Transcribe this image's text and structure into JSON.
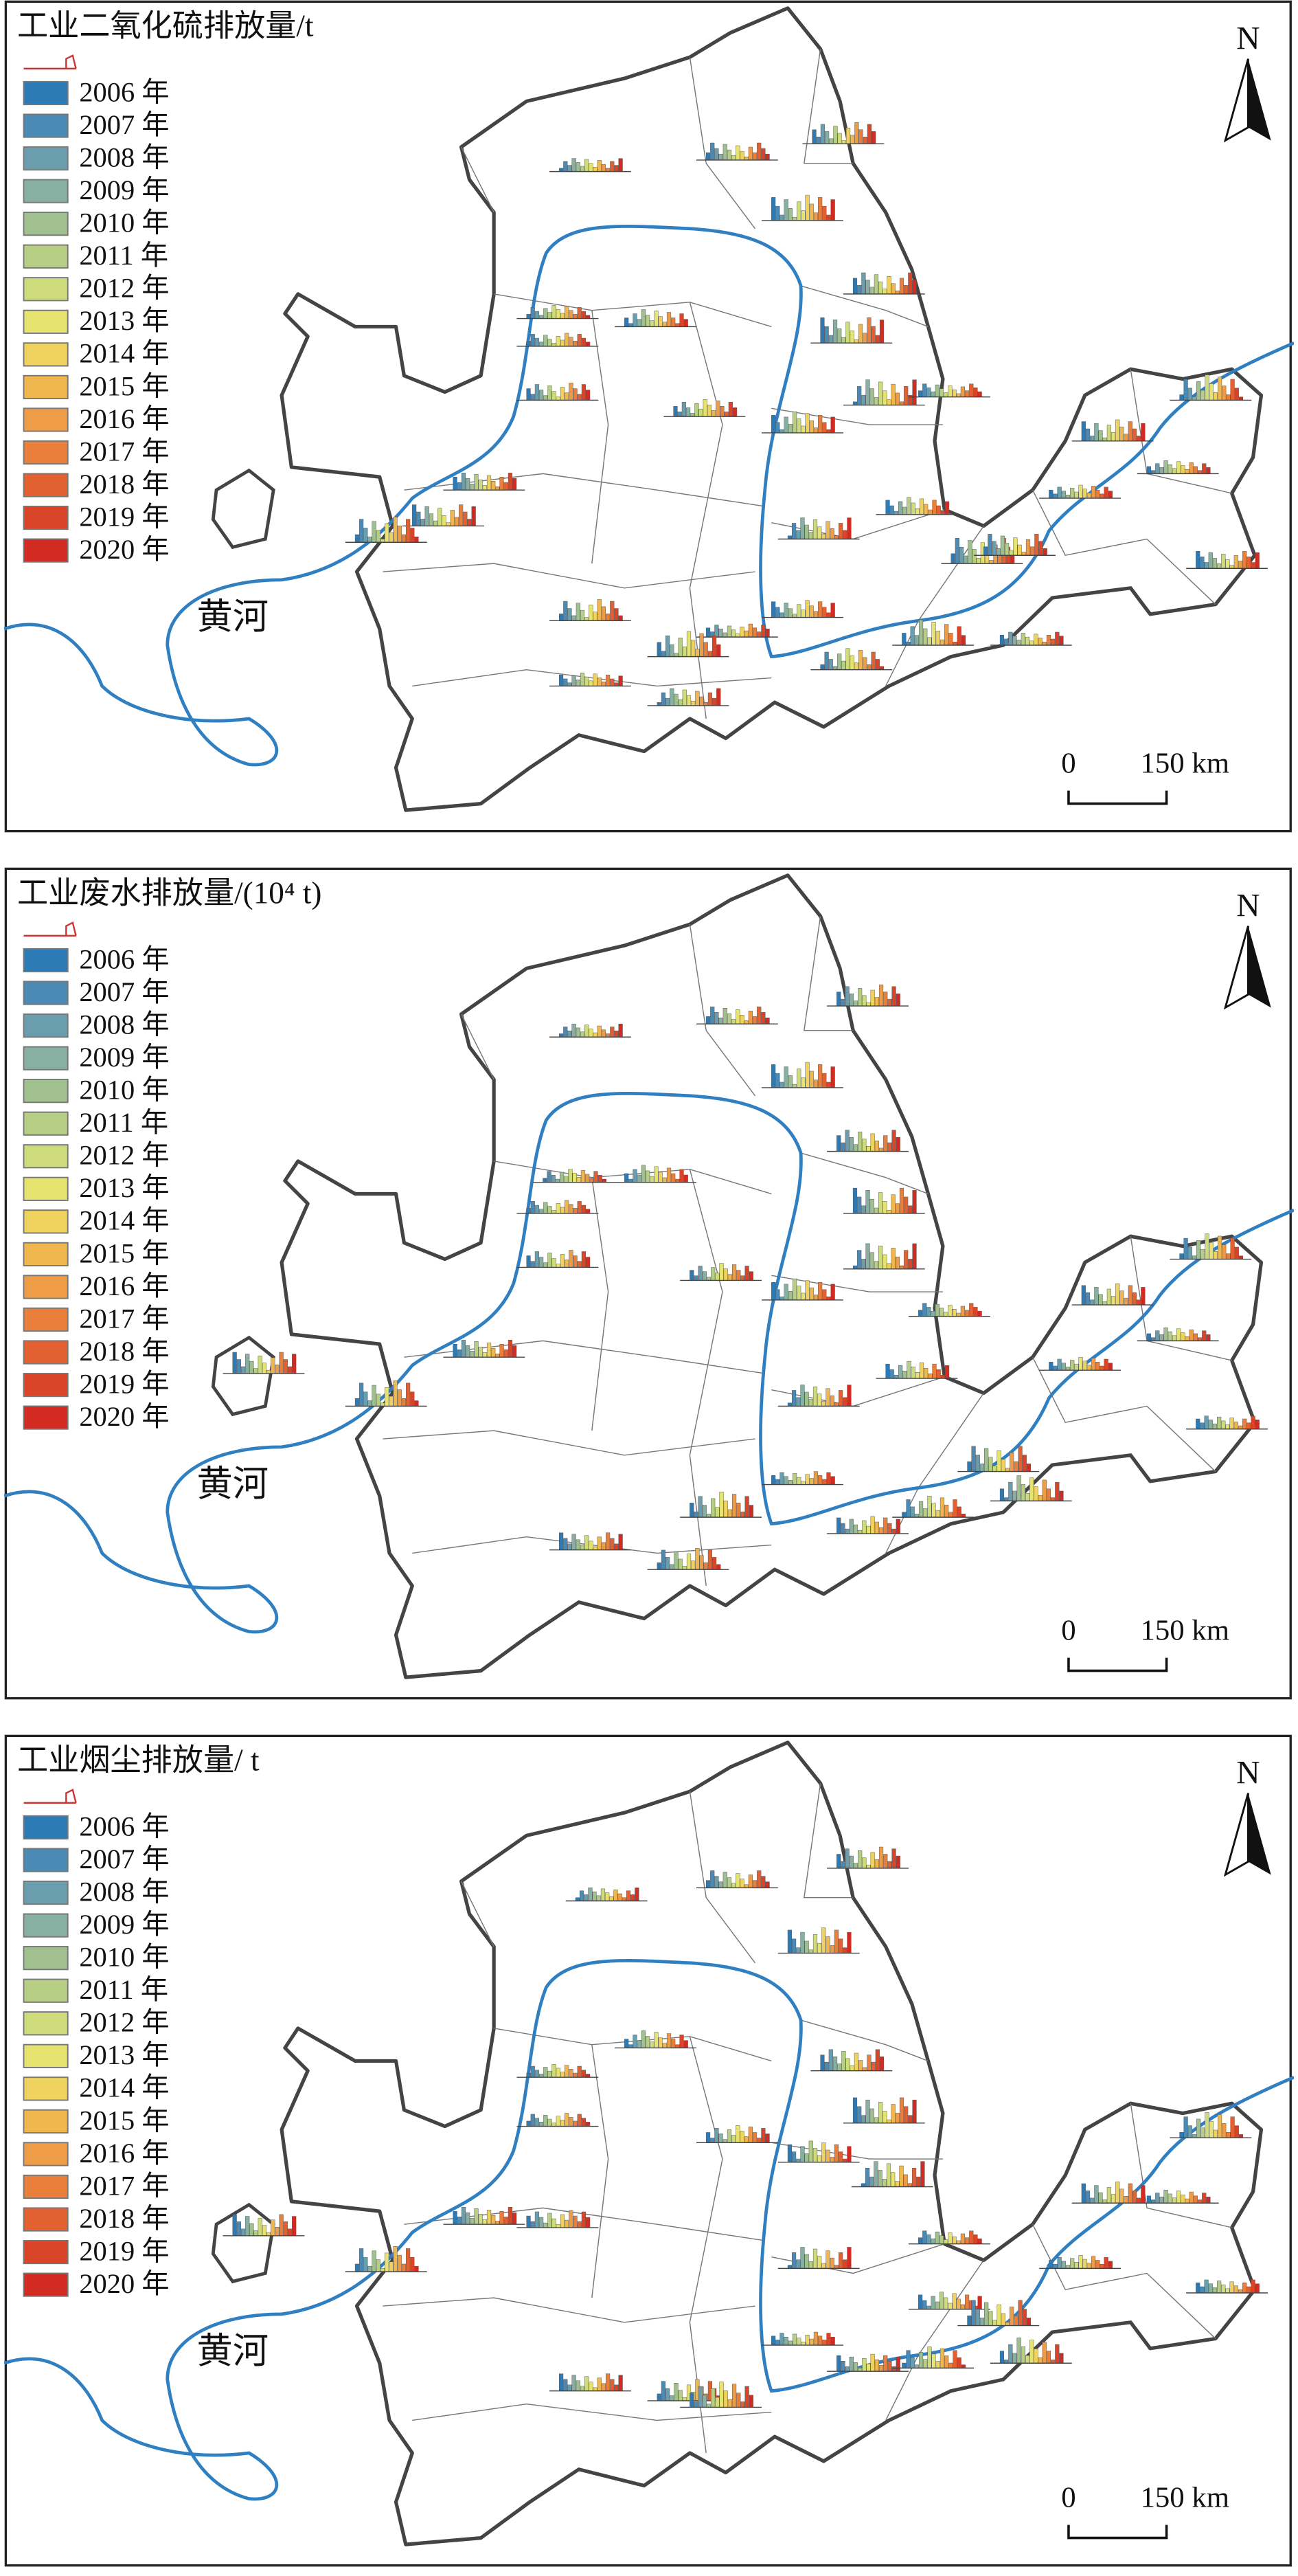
{
  "panels": [
    {
      "title": "工业二氧化硫排放量/t",
      "legend": [
        {
          "label": "2006 年",
          "color": "#2c7bb6"
        },
        {
          "label": "2007 年",
          "color": "#4a8ab4"
        },
        {
          "label": "2008 年",
          "color": "#6a9eae"
        },
        {
          "label": "2009 年",
          "color": "#88b0a2"
        },
        {
          "label": "2010 年",
          "color": "#a0c08f"
        },
        {
          "label": "2011 年",
          "color": "#b7cf85"
        },
        {
          "label": "2012 年",
          "color": "#cfdc7c"
        },
        {
          "label": "2013 年",
          "color": "#e6e46f"
        },
        {
          "label": "2014 年",
          "color": "#efd35e"
        },
        {
          "label": "2015 年",
          "color": "#f0b74f"
        },
        {
          "label": "2016 年",
          "color": "#ef9c46"
        },
        {
          "label": "2017 年",
          "color": "#ea7f3c"
        },
        {
          "label": "2018 年",
          "color": "#e36131"
        },
        {
          "label": "2019 年",
          "color": "#da4428"
        },
        {
          "label": "2020 年",
          "color": "#d22b22"
        }
      ],
      "river_label": "黄河",
      "north": "N",
      "scale_start": "0",
      "scale_end": "150 km"
    },
    {
      "title": "工业废水排放量/(10⁴ t)",
      "legend": [
        {
          "label": "2006 年",
          "color": "#2c7bb6"
        },
        {
          "label": "2007 年",
          "color": "#4a8ab4"
        },
        {
          "label": "2008 年",
          "color": "#6a9eae"
        },
        {
          "label": "2009 年",
          "color": "#88b0a2"
        },
        {
          "label": "2010 年",
          "color": "#a0c08f"
        },
        {
          "label": "2011 年",
          "color": "#b7cf85"
        },
        {
          "label": "2012 年",
          "color": "#cfdc7c"
        },
        {
          "label": "2013 年",
          "color": "#e6e46f"
        },
        {
          "label": "2014 年",
          "color": "#efd35e"
        },
        {
          "label": "2015 年",
          "color": "#f0b74f"
        },
        {
          "label": "2016 年",
          "color": "#ef9c46"
        },
        {
          "label": "2017 年",
          "color": "#ea7f3c"
        },
        {
          "label": "2018 年",
          "color": "#e36131"
        },
        {
          "label": "2019 年",
          "color": "#da4428"
        },
        {
          "label": "2020 年",
          "color": "#d22b22"
        }
      ],
      "river_label": "黄河",
      "north": "N",
      "scale_start": "0",
      "scale_end": "150 km"
    },
    {
      "title": "工业烟尘排放量/ t",
      "legend": [
        {
          "label": "2006 年",
          "color": "#2c7bb6"
        },
        {
          "label": "2007 年",
          "color": "#4a8ab4"
        },
        {
          "label": "2008 年",
          "color": "#6a9eae"
        },
        {
          "label": "2009 年",
          "color": "#88b0a2"
        },
        {
          "label": "2010 年",
          "color": "#a0c08f"
        },
        {
          "label": "2011 年",
          "color": "#b7cf85"
        },
        {
          "label": "2012 年",
          "color": "#cfdc7c"
        },
        {
          "label": "2013 年",
          "color": "#e6e46f"
        },
        {
          "label": "2014 年",
          "color": "#efd35e"
        },
        {
          "label": "2015 年",
          "color": "#f0b74f"
        },
        {
          "label": "2016 年",
          "color": "#ef9c46"
        },
        {
          "label": "2017 年",
          "color": "#ea7f3c"
        },
        {
          "label": "2018 年",
          "color": "#e36131"
        },
        {
          "label": "2019 年",
          "color": "#da4428"
        },
        {
          "label": "2020 年",
          "color": "#d22b22"
        }
      ],
      "river_label": "黄河",
      "north": "N",
      "scale_start": "0",
      "scale_end": "150 km"
    }
  ]
}
